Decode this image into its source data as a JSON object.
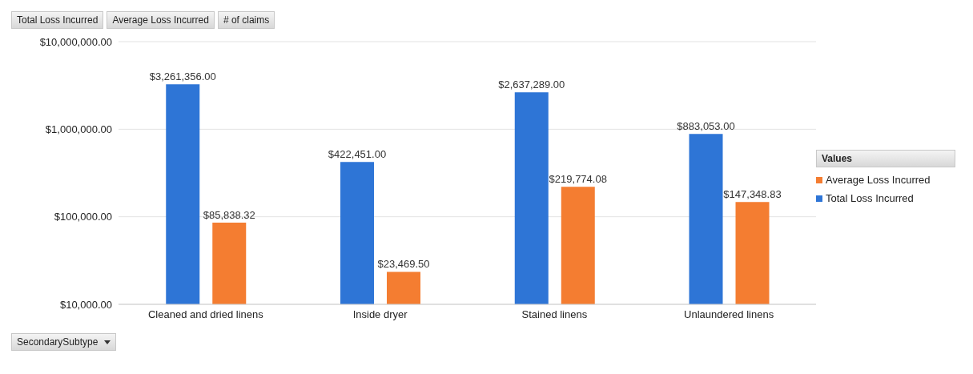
{
  "chart_data": {
    "type": "bar",
    "categories": [
      "Cleaned and dried linens",
      "Inside dryer",
      "Stained linens",
      "Unlaundered linens"
    ],
    "series": [
      {
        "name": "Total Loss Incurred",
        "color": "#2e75d6",
        "values": [
          3261356,
          422451,
          2637289,
          883053
        ],
        "value_labels": [
          "$3,261,356.00",
          "$422,451.00",
          "$2,637,289.00",
          "$883,053.00"
        ]
      },
      {
        "name": "Average Loss Incurred",
        "color": "#f47d31",
        "values": [
          85838.32,
          23469.5,
          219774.08,
          147348.83
        ],
        "value_labels": [
          "$85,838.32",
          "$23,469.50",
          "$219,774.08",
          "$147,348.83"
        ]
      }
    ],
    "log": "y",
    "ylim": [
      10000,
      10000000
    ],
    "yticks": [
      {
        "value": 10000,
        "label": "$10,000.00"
      },
      {
        "value": 100000,
        "label": "$100,000.00"
      },
      {
        "value": 1000000,
        "label": "$1,000,000.00"
      },
      {
        "value": 10000000,
        "label": "$10,000,000.00"
      }
    ],
    "grid": "y",
    "legend": "right",
    "legend_title": "Values",
    "annotations": [
      "Total Loss Incurred",
      "Average Loss Incurred",
      "# of claims",
      "SecondarySubtype"
    ]
  }
}
